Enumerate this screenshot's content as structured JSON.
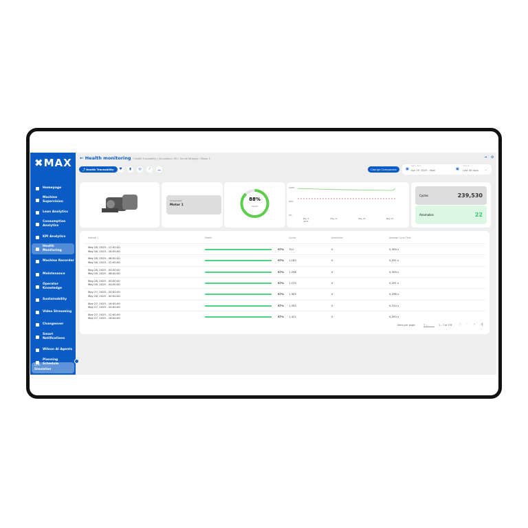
{
  "brand": "MAX",
  "header": {
    "title": "Health monitoring",
    "breadcrumb": "/ Health Traceability / Simulation / M1 / Shrink Wrapper / Motor 1",
    "active_tab": "Health Traceability",
    "change_component": "Change Component",
    "date_label": "Start - End",
    "date_value": "Apr 29, 2025 - Now",
    "interval_label": "Interval",
    "interval_value": "Last 30 days"
  },
  "sidebar": {
    "items": [
      {
        "label": "Homepage"
      },
      {
        "label": "Machine Supervision"
      },
      {
        "label": "Lean Analytics"
      },
      {
        "label": "Consumption Analytics"
      },
      {
        "label": "KPI Analytics"
      },
      {
        "label": "Health Monitoring",
        "active": true
      },
      {
        "label": "Machine Recorder"
      },
      {
        "label": "Maintenance"
      },
      {
        "label": "Operator Knowledge"
      },
      {
        "label": "Sustainability"
      },
      {
        "label": "Video Streaming"
      },
      {
        "label": "Changeover"
      },
      {
        "label": "Smart Notifications"
      },
      {
        "label": "Wilson AI Agents"
      },
      {
        "label": "Planning Schedule"
      }
    ],
    "footer_label": "Line",
    "footer_value": "Simulation"
  },
  "component": {
    "label": "Component",
    "value": "Motor 1"
  },
  "health": {
    "value": "88%",
    "label": "Health",
    "fraction": 0.88
  },
  "chart_data": {
    "type": "line",
    "yticks": [
      "100%",
      "50%",
      "0%"
    ],
    "xticks": [
      "May 4\n2025",
      "May 11",
      "May 18",
      "May 25"
    ],
    "threshold": 60,
    "series": [
      {
        "values": [
          97,
          95,
          93,
          92,
          91,
          90,
          90,
          97
        ]
      }
    ],
    "ylim": [
      0,
      100
    ]
  },
  "stats": {
    "cycles_label": "Cycles",
    "cycles": "239,530",
    "anomalies_label": "Anomalies",
    "anomalies": "22"
  },
  "table": {
    "headers": [
      "Interval",
      "Health",
      "Cycles",
      "Anomalies",
      "Average Cycle Time"
    ],
    "rows": [
      {
        "start": "May 28, 2025 - 12:00:00",
        "end": "May 28, 2025 - 16:00:00",
        "health": "97%",
        "health_frac": 0.97,
        "cycles": "701",
        "anomalies": "0",
        "avg": "5,309 s"
      },
      {
        "start": "May 28, 2025 - 08:00:00",
        "end": "May 28, 2025 - 12:00:00",
        "health": "97%",
        "health_frac": 0.97,
        "cycles": "1,182",
        "anomalies": "0",
        "avg": "5,291 s"
      },
      {
        "start": "May 28, 2025 - 04:00:00",
        "end": "May 28, 2025 - 08:00:00",
        "health": "97%",
        "health_frac": 0.97,
        "cycles": "1,298",
        "anomalies": "0",
        "avg": "5,309 s"
      },
      {
        "start": "May 28, 2025 - 00:00:00",
        "end": "May 28, 2025 - 04:00:00",
        "health": "97%",
        "health_frac": 0.97,
        "cycles": "1,270",
        "anomalies": "0",
        "avg": "5,291 s"
      },
      {
        "start": "May 27, 2025 - 20:00:00",
        "end": "May 28, 2025 - 00:00:00",
        "health": "97%",
        "health_frac": 0.97,
        "cycles": "1,305",
        "anomalies": "0",
        "avg": "5,296 s"
      },
      {
        "start": "May 27, 2025 - 16:00:00",
        "end": "May 27, 2025 - 20:00:00",
        "health": "97%",
        "health_frac": 0.97,
        "cycles": "1,350",
        "anomalies": "0",
        "avg": "5,314 s"
      },
      {
        "start": "May 27, 2025 - 12:00:00",
        "end": "May 27, 2025 - 16:00:00",
        "health": "97%",
        "health_frac": 0.97,
        "cycles": "1,421",
        "anomalies": "0",
        "avg": "5,293 s"
      }
    ],
    "items_per_page_label": "Items per page:",
    "items_per_page": "7",
    "range": "1 – 7 of 178"
  },
  "colors": {
    "brand": "#0a5bc4",
    "health": "#4cd37f",
    "threshold": "#e5485d"
  }
}
